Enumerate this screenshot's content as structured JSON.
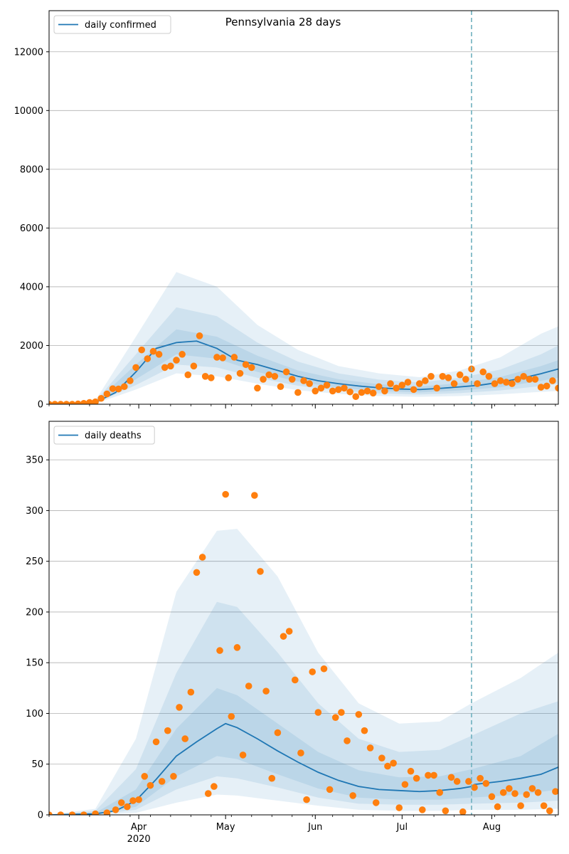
{
  "figure": {
    "title": "Pennsylvania 28 days"
  },
  "colors": {
    "line": "#1f77b4",
    "band": "#1f77b4",
    "points": "#ff7f0e",
    "vline": "#6fb0bf",
    "grid": "#b0b0b0"
  },
  "chart_data": [
    {
      "type": "line",
      "legend": "daily confirmed",
      "legend_position": "top-left",
      "grid": "horizontal",
      "xlim": [
        "2020-03-01",
        "2020-08-24"
      ],
      "ylim": [
        0,
        13400
      ],
      "yticks": [
        0,
        2000,
        4000,
        6000,
        8000,
        10000,
        12000
      ],
      "xticks_major": [
        {
          "date": "2020-04-01",
          "label": "Apr"
        },
        {
          "date": "2020-05-01",
          "label": "May"
        },
        {
          "date": "2020-06-01",
          "label": "Jun"
        },
        {
          "date": "2020-07-01",
          "label": "Jul"
        },
        {
          "date": "2020-08-01",
          "label": "Aug"
        }
      ],
      "forecast_start": "2020-07-25",
      "series": [
        {
          "kind": "median",
          "x": [
            "2020-03-01",
            "2020-03-10",
            "2020-03-17",
            "2020-03-24",
            "2020-03-31",
            "2020-04-07",
            "2020-04-14",
            "2020-04-21",
            "2020-04-28",
            "2020-05-05",
            "2020-05-12",
            "2020-05-19",
            "2020-05-26",
            "2020-06-02",
            "2020-06-09",
            "2020-06-16",
            "2020-06-23",
            "2020-06-30",
            "2020-07-07",
            "2020-07-14",
            "2020-07-21",
            "2020-07-28",
            "2020-08-04",
            "2020-08-11",
            "2020-08-18",
            "2020-08-24"
          ],
          "values": [
            0,
            10,
            60,
            400,
            1100,
            1900,
            2100,
            2150,
            1900,
            1500,
            1350,
            1150,
            950,
            800,
            700,
            620,
            560,
            520,
            500,
            540,
            590,
            650,
            750,
            880,
            1040,
            1200
          ]
        },
        {
          "kind": "band_50",
          "x": [
            "2020-03-01",
            "2020-03-17",
            "2020-03-31",
            "2020-04-14",
            "2020-04-28",
            "2020-05-12",
            "2020-05-26",
            "2020-06-09",
            "2020-06-23",
            "2020-07-07",
            "2020-07-21",
            "2020-08-04",
            "2020-08-18",
            "2020-08-24"
          ],
          "lower": [
            0,
            40,
            850,
            1700,
            1550,
            1100,
            770,
            560,
            450,
            400,
            470,
            580,
            800,
            900
          ],
          "upper": [
            0,
            80,
            1350,
            2550,
            2300,
            1650,
            1150,
            850,
            680,
            600,
            720,
            930,
            1300,
            1500
          ]
        },
        {
          "kind": "band_80",
          "x": [
            "2020-03-01",
            "2020-03-17",
            "2020-03-31",
            "2020-04-14",
            "2020-04-28",
            "2020-05-12",
            "2020-05-26",
            "2020-06-09",
            "2020-06-23",
            "2020-07-07",
            "2020-07-21",
            "2020-08-04",
            "2020-08-18",
            "2020-08-24"
          ],
          "lower": [
            0,
            30,
            650,
            1350,
            1250,
            900,
            630,
            460,
            370,
            330,
            380,
            470,
            620,
            700
          ],
          "upper": [
            0,
            100,
            1700,
            3300,
            3000,
            2100,
            1450,
            1050,
            840,
            740,
            900,
            1180,
            1700,
            2000
          ]
        },
        {
          "kind": "band_95",
          "x": [
            "2020-03-01",
            "2020-03-17",
            "2020-03-31",
            "2020-04-14",
            "2020-04-28",
            "2020-05-12",
            "2020-05-26",
            "2020-06-09",
            "2020-06-23",
            "2020-07-07",
            "2020-07-21",
            "2020-08-04",
            "2020-08-18",
            "2020-08-24"
          ],
          "lower": [
            0,
            20,
            500,
            1050,
            950,
            700,
            480,
            350,
            280,
            250,
            280,
            340,
            420,
            450
          ],
          "upper": [
            0,
            130,
            2300,
            4500,
            4000,
            2700,
            1850,
            1300,
            1050,
            920,
            1150,
            1600,
            2400,
            2650
          ]
        },
        {
          "kind": "observed",
          "x": [
            "2020-03-01",
            "2020-03-03",
            "2020-03-05",
            "2020-03-07",
            "2020-03-09",
            "2020-03-11",
            "2020-03-13",
            "2020-03-15",
            "2020-03-17",
            "2020-03-19",
            "2020-03-21",
            "2020-03-23",
            "2020-03-25",
            "2020-03-27",
            "2020-03-29",
            "2020-03-31",
            "2020-04-02",
            "2020-04-04",
            "2020-04-06",
            "2020-04-08",
            "2020-04-10",
            "2020-04-12",
            "2020-04-14",
            "2020-04-16",
            "2020-04-18",
            "2020-04-20",
            "2020-04-22",
            "2020-04-24",
            "2020-04-26",
            "2020-04-28",
            "2020-04-30",
            "2020-05-02",
            "2020-05-04",
            "2020-05-06",
            "2020-05-08",
            "2020-05-10",
            "2020-05-12",
            "2020-05-14",
            "2020-05-16",
            "2020-05-18",
            "2020-05-20",
            "2020-05-22",
            "2020-05-24",
            "2020-05-26",
            "2020-05-28",
            "2020-05-30",
            "2020-06-01",
            "2020-06-03",
            "2020-06-05",
            "2020-06-07",
            "2020-06-09",
            "2020-06-11",
            "2020-06-13",
            "2020-06-15",
            "2020-06-17",
            "2020-06-19",
            "2020-06-21",
            "2020-06-23",
            "2020-06-25",
            "2020-06-27",
            "2020-06-29",
            "2020-07-01",
            "2020-07-03",
            "2020-07-05",
            "2020-07-07",
            "2020-07-09",
            "2020-07-11",
            "2020-07-13",
            "2020-07-15",
            "2020-07-17",
            "2020-07-19",
            "2020-07-21",
            "2020-07-23",
            "2020-07-25",
            "2020-07-27",
            "2020-07-29",
            "2020-07-31",
            "2020-08-02",
            "2020-08-04",
            "2020-08-06",
            "2020-08-08",
            "2020-08-10",
            "2020-08-12",
            "2020-08-14",
            "2020-08-16",
            "2020-08-18",
            "2020-08-20",
            "2020-08-22",
            "2020-08-24"
          ],
          "values": [
            0,
            0,
            0,
            0,
            0,
            10,
            30,
            60,
            80,
            200,
            350,
            530,
            520,
            600,
            800,
            1250,
            1850,
            1550,
            1800,
            1700,
            1250,
            1300,
            1500,
            1700,
            1000,
            1300,
            2330,
            950,
            900,
            1600,
            1580,
            900,
            1600,
            1050,
            1350,
            1250,
            550,
            850,
            1000,
            950,
            600,
            1100,
            850,
            400,
            800,
            700,
            450,
            550,
            650,
            450,
            500,
            550,
            420,
            260,
            400,
            450,
            380,
            600,
            450,
            700,
            550,
            650,
            750,
            500,
            700,
            800,
            950,
            550,
            950,
            900,
            700,
            1000,
            850,
            1200,
            700,
            1100,
            950,
            700,
            800,
            750,
            700,
            850,
            950,
            850,
            850,
            580,
            620,
            800,
            550
          ]
        }
      ]
    },
    {
      "type": "line",
      "legend": "daily deaths",
      "legend_position": "top-left",
      "grid": "horizontal",
      "xlim": [
        "2020-03-01",
        "2020-08-24"
      ],
      "ylim": [
        0,
        388
      ],
      "yticks": [
        0,
        50,
        100,
        150,
        200,
        250,
        300,
        350
      ],
      "xticks_major": [
        {
          "date": "2020-04-01",
          "label": "Apr"
        },
        {
          "date": "2020-05-01",
          "label": "May"
        },
        {
          "date": "2020-06-01",
          "label": "Jun"
        },
        {
          "date": "2020-07-01",
          "label": "Jul"
        },
        {
          "date": "2020-08-01",
          "label": "Aug"
        }
      ],
      "year_label": "2020",
      "forecast_start": "2020-07-25",
      "series": [
        {
          "kind": "median",
          "x": [
            "2020-03-01",
            "2020-03-17",
            "2020-03-24",
            "2020-03-31",
            "2020-04-07",
            "2020-04-14",
            "2020-04-21",
            "2020-04-28",
            "2020-05-01",
            "2020-05-05",
            "2020-05-12",
            "2020-05-19",
            "2020-05-26",
            "2020-06-02",
            "2020-06-09",
            "2020-06-16",
            "2020-06-23",
            "2020-06-30",
            "2020-07-07",
            "2020-07-14",
            "2020-07-21",
            "2020-07-25",
            "2020-07-26",
            "2020-08-04",
            "2020-08-11",
            "2020-08-18",
            "2020-08-24"
          ],
          "values": [
            0,
            1,
            4,
            14,
            35,
            58,
            72,
            85,
            90,
            86,
            75,
            63,
            52,
            42,
            34,
            28,
            25,
            24,
            23,
            24,
            26,
            28,
            30,
            33,
            36,
            40,
            47
          ]
        },
        {
          "kind": "band_50",
          "x": [
            "2020-03-01",
            "2020-03-17",
            "2020-03-31",
            "2020-04-14",
            "2020-04-28",
            "2020-05-05",
            "2020-05-19",
            "2020-06-02",
            "2020-06-16",
            "2020-06-30",
            "2020-07-14",
            "2020-07-25",
            "2020-08-11",
            "2020-08-24"
          ],
          "lower": [
            0,
            0,
            8,
            38,
            58,
            55,
            40,
            26,
            17,
            15,
            15,
            17,
            20,
            25
          ],
          "upper": [
            0,
            2,
            25,
            85,
            125,
            118,
            90,
            62,
            44,
            37,
            38,
            45,
            58,
            80
          ]
        },
        {
          "kind": "band_80",
          "x": [
            "2020-03-01",
            "2020-03-17",
            "2020-03-31",
            "2020-04-14",
            "2020-04-28",
            "2020-05-05",
            "2020-05-19",
            "2020-06-02",
            "2020-06-16",
            "2020-06-30",
            "2020-07-14",
            "2020-07-25",
            "2020-08-11",
            "2020-08-24"
          ],
          "lower": [
            0,
            0,
            5,
            25,
            38,
            36,
            27,
            17,
            11,
            10,
            10,
            11,
            12,
            14
          ],
          "upper": [
            0,
            4,
            45,
            140,
            210,
            205,
            160,
            110,
            75,
            62,
            64,
            78,
            100,
            112
          ]
        },
        {
          "kind": "band_95",
          "x": [
            "2020-03-01",
            "2020-03-17",
            "2020-03-31",
            "2020-04-14",
            "2020-04-28",
            "2020-05-05",
            "2020-05-19",
            "2020-06-02",
            "2020-06-16",
            "2020-06-30",
            "2020-07-14",
            "2020-07-25",
            "2020-08-11",
            "2020-08-24"
          ],
          "lower": [
            0,
            0,
            2,
            12,
            20,
            19,
            14,
            9,
            5,
            4,
            4,
            5,
            5,
            6
          ],
          "upper": [
            0,
            6,
            75,
            220,
            280,
            282,
            235,
            160,
            110,
            90,
            92,
            110,
            135,
            160
          ]
        },
        {
          "kind": "observed",
          "x": [
            "2020-03-01",
            "2020-03-05",
            "2020-03-09",
            "2020-03-13",
            "2020-03-17",
            "2020-03-21",
            "2020-03-24",
            "2020-03-26",
            "2020-03-28",
            "2020-03-30",
            "2020-04-01",
            "2020-04-03",
            "2020-04-05",
            "2020-04-07",
            "2020-04-09",
            "2020-04-11",
            "2020-04-13",
            "2020-04-15",
            "2020-04-17",
            "2020-04-19",
            "2020-04-21",
            "2020-04-23",
            "2020-04-25",
            "2020-04-27",
            "2020-04-29",
            "2020-05-01",
            "2020-05-03",
            "2020-05-05",
            "2020-05-07",
            "2020-05-09",
            "2020-05-11",
            "2020-05-13",
            "2020-05-15",
            "2020-05-17",
            "2020-05-19",
            "2020-05-21",
            "2020-05-23",
            "2020-05-25",
            "2020-05-27",
            "2020-05-29",
            "2020-05-31",
            "2020-06-02",
            "2020-06-04",
            "2020-06-06",
            "2020-06-08",
            "2020-06-10",
            "2020-06-12",
            "2020-06-14",
            "2020-06-16",
            "2020-06-18",
            "2020-06-20",
            "2020-06-22",
            "2020-06-24",
            "2020-06-26",
            "2020-06-28",
            "2020-06-30",
            "2020-07-02",
            "2020-07-04",
            "2020-07-06",
            "2020-07-08",
            "2020-07-10",
            "2020-07-12",
            "2020-07-14",
            "2020-07-16",
            "2020-07-18",
            "2020-07-20",
            "2020-07-22",
            "2020-07-24",
            "2020-07-26",
            "2020-07-28",
            "2020-07-30",
            "2020-08-01",
            "2020-08-03",
            "2020-08-05",
            "2020-08-07",
            "2020-08-09",
            "2020-08-11",
            "2020-08-13",
            "2020-08-15",
            "2020-08-17",
            "2020-08-19",
            "2020-08-21",
            "2020-08-23"
          ],
          "values": [
            0,
            0,
            0,
            0,
            1,
            2,
            5,
            12,
            8,
            14,
            15,
            38,
            29,
            72,
            33,
            83,
            38,
            106,
            75,
            121,
            239,
            254,
            21,
            28,
            162,
            316,
            97,
            165,
            59,
            127,
            315,
            240,
            122,
            36,
            81,
            176,
            181,
            133,
            61,
            15,
            141,
            101,
            144,
            25,
            96,
            101,
            73,
            19,
            99,
            83,
            66,
            12,
            56,
            48,
            51,
            7,
            30,
            43,
            36,
            5,
            39,
            39,
            22,
            4,
            37,
            33,
            3,
            33,
            27,
            36,
            31,
            18,
            8,
            22,
            26,
            21,
            9,
            20,
            26,
            22,
            9,
            4,
            23
          ]
        }
      ]
    }
  ]
}
